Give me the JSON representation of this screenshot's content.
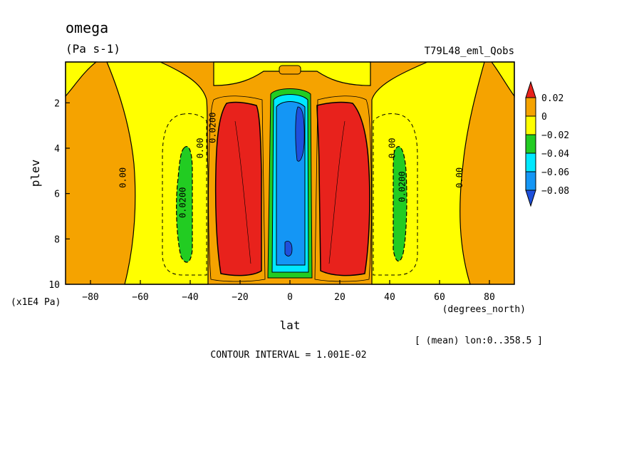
{
  "chart_data": {
    "type": "heatmap",
    "title": "omega",
    "subtitle": "(Pa s-1)",
    "run_label": "T79L48_eml_Qobs",
    "xlabel": "lat",
    "x_units": "(degrees_north)",
    "ylabel": "plev",
    "y_units": "(x1E4 Pa)",
    "xlim": [
      -90,
      90
    ],
    "ylim": [
      10,
      0.2
    ],
    "x_ticks": [
      "-80",
      "-60",
      "-40",
      "-20",
      "0",
      "20",
      "40",
      "60",
      "80"
    ],
    "y_ticks": [
      "2",
      "4",
      "6",
      "8",
      "10"
    ],
    "mean_note": "[ (mean) lon:0..358.5 ]",
    "contour_interval": "CONTOUR INTERVAL = 1.001E-02",
    "legend": {
      "labels": [
        "0.02",
        "0",
        "−0.02",
        "−0.04",
        "−0.06",
        "−0.08"
      ],
      "bins": [
        {
          "range": ">0.02",
          "color": "#e8221c"
        },
        {
          "range": "0 to 0.02",
          "color": "#f5a300"
        },
        {
          "range": "-0.02 to 0",
          "color": "#ffff00"
        },
        {
          "range": "-0.04 to -0.02",
          "color": "#22cc22"
        },
        {
          "range": "-0.06 to -0.04",
          "color": "#00e8ff"
        },
        {
          "range": "-0.08 to -0.06",
          "color": "#1496f5"
        },
        {
          "range": "<-0.08",
          "color": "#1e50dc"
        }
      ]
    },
    "contour_labels": [
      {
        "text": "0.00",
        "lat": -67,
        "plev": 5.3
      },
      {
        "text": "0.0200",
        "lat": -43,
        "plev": 6.4
      },
      {
        "text": "0.0200",
        "lat": -31,
        "plev": 3.1
      },
      {
        "text": "0.00",
        "lat": -36,
        "plev": 4.0
      },
      {
        "text": "0.0200",
        "lat": 45,
        "plev": 5.7
      },
      {
        "text": "0.00",
        "lat": 41,
        "plev": 4.0
      },
      {
        "text": "0.00",
        "lat": 68,
        "plev": 5.3
      }
    ]
  }
}
